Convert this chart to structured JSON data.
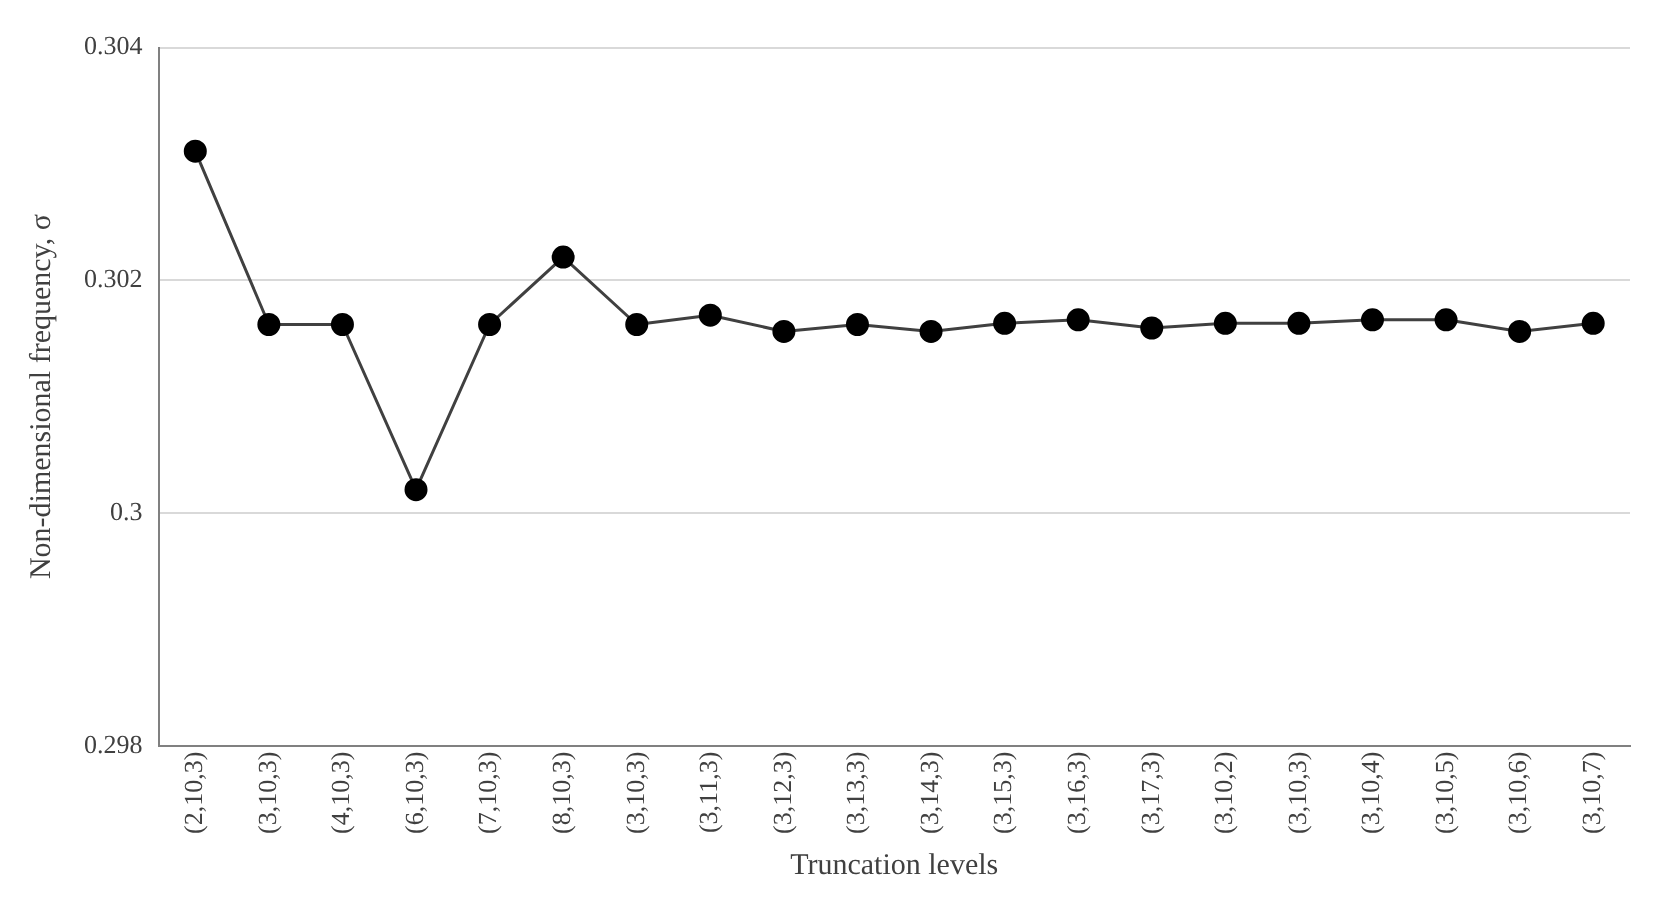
{
  "chart_data": {
    "type": "line",
    "xlabel": "Truncation levels",
    "ylabel": "Non-dimensional frequency, σ",
    "categories": [
      "(2,10,3)",
      "(3,10,3)",
      "(4,10,3)",
      "(6,10,3)",
      "(7,10,3)",
      "(8,10,3)",
      "(3,10,3)",
      "(3,11,3)",
      "(3,12,3)",
      "(3,13,3)",
      "(3,14,3)",
      "(3,15,3)",
      "(3,16,3)",
      "(3,17,3)",
      "(3,10,2)",
      "(3,10,3)",
      "(3,10,4)",
      "(3,10,5)",
      "(3,10,6)",
      "(3,10,7)"
    ],
    "series": [
      {
        "color": "#000000",
        "values": [
          0.30311,
          0.30162,
          0.30162,
          0.3002,
          0.30162,
          0.3022,
          0.30162,
          0.3017,
          0.30156,
          0.30162,
          0.30156,
          0.30163,
          0.30166,
          0.30159,
          0.30163,
          0.30163,
          0.30166,
          0.30166,
          0.30156,
          0.30163
        ]
      }
    ],
    "ylim": [
      0.298,
      0.304
    ],
    "yticks": [
      0.298,
      0.3,
      0.302,
      0.304
    ],
    "grid": "y",
    "legend": false,
    "marker": "circle",
    "line_style": "solid"
  }
}
